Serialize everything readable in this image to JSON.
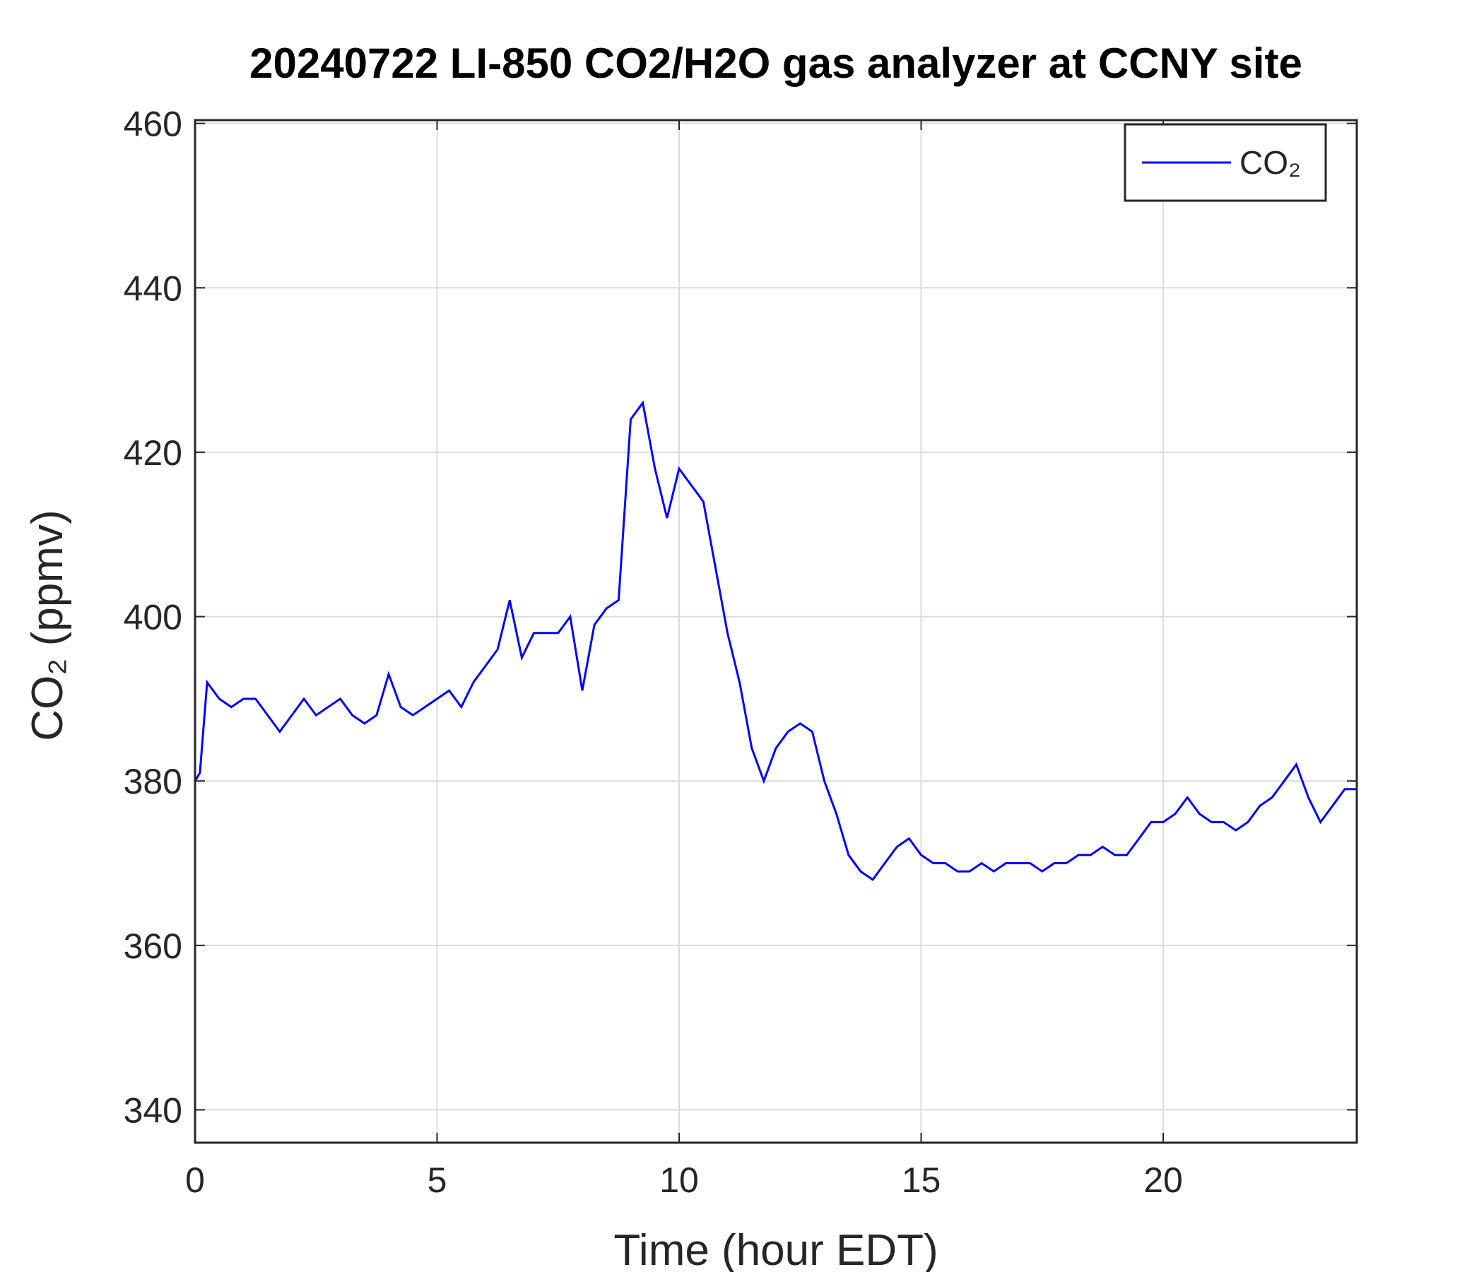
{
  "chart_data": {
    "type": "line",
    "title": "20240722 LI-850 CO2/H2O gas analyzer at CCNY site",
    "x_label": "Time (hour EDT)",
    "y_label": "CO₂ (ppmv)",
    "x": [
      0,
      0.1,
      0.25,
      0.5,
      0.75,
      1,
      1.25,
      1.5,
      1.75,
      2,
      2.25,
      2.5,
      2.75,
      3,
      3.25,
      3.5,
      3.75,
      4,
      4.25,
      4.5,
      4.75,
      5,
      5.25,
      5.5,
      5.75,
      6,
      6.25,
      6.5,
      6.75,
      7,
      7.25,
      7.5,
      7.75,
      8,
      8.25,
      8.5,
      8.75,
      9,
      9.25,
      9.5,
      9.75,
      10,
      10.25,
      10.5,
      10.75,
      11,
      11.25,
      11.5,
      11.75,
      12,
      12.25,
      12.5,
      12.75,
      13,
      13.25,
      13.5,
      13.75,
      14,
      14.25,
      14.5,
      14.75,
      15,
      15.25,
      15.5,
      15.75,
      16,
      16.25,
      16.5,
      16.75,
      17,
      17.25,
      17.5,
      17.75,
      18,
      18.25,
      18.5,
      18.75,
      19,
      19.25,
      19.5,
      19.75,
      20,
      20.25,
      20.5,
      20.75,
      21,
      21.25,
      21.5,
      21.75,
      22,
      22.25,
      22.5,
      22.75,
      23,
      23.25,
      23.5,
      23.75,
      24
    ],
    "series": [
      {
        "name": "CO₂",
        "color": "#0000ff",
        "values": [
          380,
          381,
          392,
          390,
          389,
          390,
          390,
          388,
          386,
          388,
          390,
          388,
          389,
          390,
          388,
          387,
          388,
          393,
          389,
          388,
          389,
          390,
          391,
          389,
          392,
          394,
          396,
          402,
          395,
          398,
          398,
          398,
          400,
          391,
          399,
          401,
          402,
          424,
          426,
          418,
          412,
          418,
          416,
          414,
          406,
          398,
          392,
          384,
          380,
          384,
          386,
          387,
          386,
          380,
          376,
          371,
          369,
          368,
          370,
          372,
          373,
          371,
          370,
          370,
          369,
          369,
          370,
          369,
          370,
          370,
          370,
          369,
          370,
          370,
          371,
          371,
          372,
          371,
          371,
          373,
          375,
          375,
          376,
          378,
          376,
          375,
          375,
          374,
          375,
          377,
          378,
          380,
          382,
          378,
          375,
          377,
          379,
          379
        ]
      }
    ],
    "xlim": [
      0,
      24
    ],
    "xticks": [
      0,
      5,
      10,
      15,
      20
    ],
    "ylim": [
      336,
      460.4
    ],
    "yticks": [
      340,
      360,
      380,
      400,
      420,
      440,
      460
    ],
    "grid": true,
    "legend": "upper right"
  }
}
